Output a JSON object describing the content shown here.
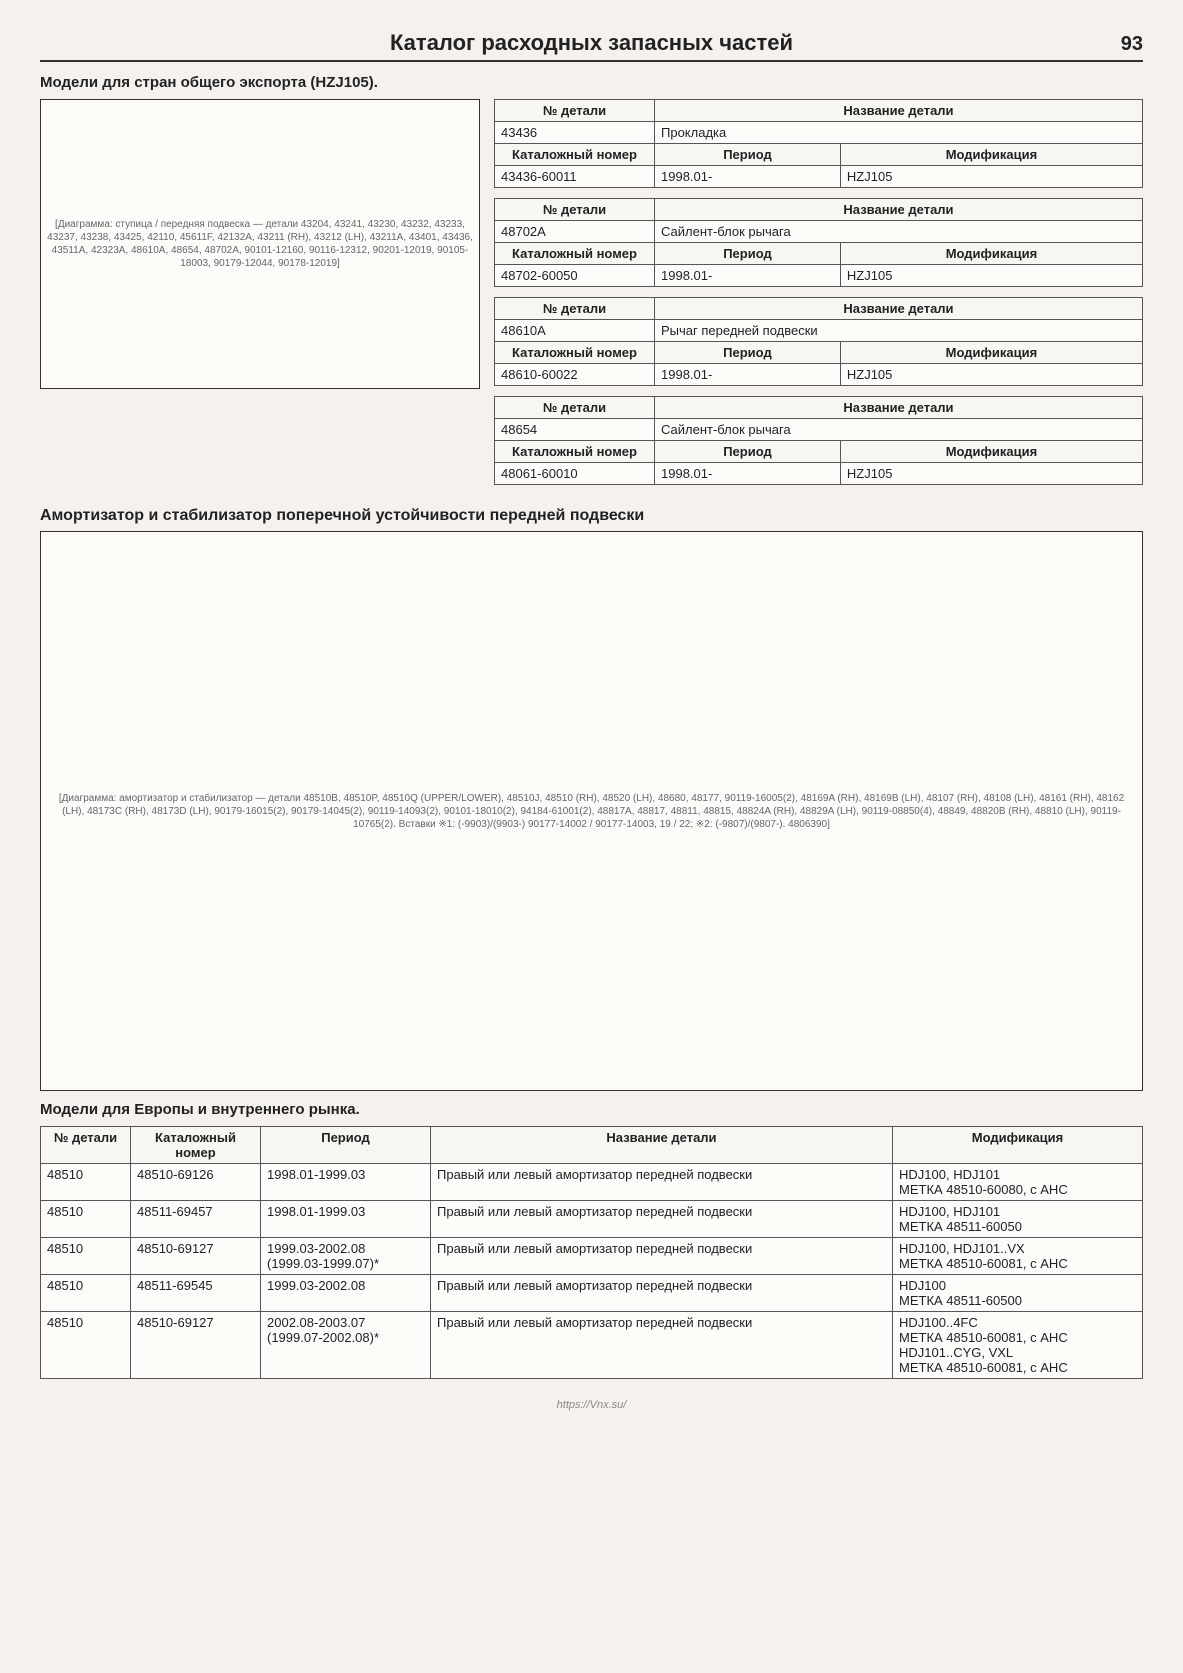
{
  "header": {
    "title": "Каталог расходных запасных частей",
    "page_number": "93"
  },
  "subsection1_title": "Модели для стран общего экспорта (HZJ105).",
  "diagram1_placeholder": "[Диаграмма: ступица / передняя подвеска — детали 43204, 43241, 43230, 43232, 43233, 43237, 43238, 43425, 42110, 45611F, 42132A, 43211 (RH), 43212 (LH), 43211A, 43401, 43436, 43511A, 42323A, 48610A, 48654, 48702A, 90101-12160, 90116-12312, 90201-12019, 90105-18003, 90179-12044, 90178-12019]",
  "part_blocks": [
    {
      "part_label": "№ детали",
      "name_label": "Название детали",
      "part_no": "43436",
      "part_name": "Прокладка",
      "cat_label": "Каталожный номер",
      "period_label": "Период",
      "mod_label": "Модификация",
      "rows": [
        {
          "cat": "43436-60011",
          "period": "1998.01-",
          "mod": "HZJ105"
        }
      ]
    },
    {
      "part_label": "№ детали",
      "name_label": "Название детали",
      "part_no": "48702A",
      "part_name": "Сайлент-блок рычага",
      "cat_label": "Каталожный номер",
      "period_label": "Период",
      "mod_label": "Модификация",
      "rows": [
        {
          "cat": "48702-60050",
          "period": "1998.01-",
          "mod": "HZJ105"
        }
      ]
    },
    {
      "part_label": "№ детали",
      "name_label": "Название детали",
      "part_no": "48610A",
      "part_name": "Рычаг передней подвески",
      "cat_label": "Каталожный номер",
      "period_label": "Период",
      "mod_label": "Модификация",
      "rows": [
        {
          "cat": "48610-60022",
          "period": "1998.01-",
          "mod": "HZJ105"
        }
      ]
    },
    {
      "part_label": "№ детали",
      "name_label": "Название детали",
      "part_no": "48654",
      "part_name": "Сайлент-блок рычага",
      "cat_label": "Каталожный номер",
      "period_label": "Период",
      "mod_label": "Модификация",
      "rows": [
        {
          "cat": "48061-60010",
          "period": "1998.01-",
          "mod": "HZJ105"
        }
      ]
    }
  ],
  "section2_heading": "Амортизатор и стабилизатор поперечной устойчивости передней подвески",
  "diagram2_placeholder": "[Диаграмма: амортизатор и стабилизатор — детали 48510B, 48510P, 48510Q (UPPER/LOWER), 48510J, 48510 (RH), 48520 (LH), 48680, 48177, 90119-16005(2), 48169A (RH), 48169B (LH), 48107 (RH), 48108 (LH), 48161 (RH), 48162 (LH), 48173C (RH), 48173D (LH), 90179-16015(2), 90179-14045(2), 90119-14093(2), 90101-18010(2), 94184-61001(2), 48817A, 48817, 48811, 48815, 48824A (RH), 48829A (LH), 90119-08850(4), 48849, 48820B (RH), 48810 (LH), 90119-10765(2). Вставки ※1: (-9903)/(9903-) 90177-14002 / 90177-14003, 19 / 22; ※2: (-9807)/(9807-). 4806390]",
  "subsection2_title": "Модели для Европы и внутреннего рынка.",
  "main_table": {
    "headers": {
      "part_no": "№ детали",
      "cat_no": "Каталожный номер",
      "period": "Период",
      "name": "Название детали",
      "mod": "Модификация"
    },
    "rows": [
      {
        "part_no": "48510",
        "cat_no": "48510-69126",
        "period": "1998.01-1999.03",
        "name": "Правый или левый амортизатор передней подвески",
        "mod": "HDJ100, HDJ101\nМЕТКА 48510-60080, с AHC"
      },
      {
        "part_no": "48510",
        "cat_no": "48511-69457",
        "period": "1998.01-1999.03",
        "name": "Правый или левый амортизатор передней подвески",
        "mod": "HDJ100, HDJ101\nМЕТКА 48511-60050"
      },
      {
        "part_no": "48510",
        "cat_no": "48510-69127",
        "period": "1999.03-2002.08\n(1999.03-1999.07)*",
        "name": "Правый или левый амортизатор передней подвески",
        "mod": "HDJ100, HDJ101..VX\nМЕТКА 48510-60081, с AHC"
      },
      {
        "part_no": "48510",
        "cat_no": "48511-69545",
        "period": "1999.03-2002.08",
        "name": "Правый или левый амортизатор передней подвески",
        "mod": "HDJ100\nМЕТКА 48511-60500"
      },
      {
        "part_no": "48510",
        "cat_no": "48510-69127",
        "period": "2002.08-2003.07\n(1999.07-2002.08)*",
        "name": "Правый или левый амортизатор передней подвески",
        "mod": "HDJ100..4FC\nМЕТКА 48510-60081, с AHC\nHDJ101..CYG, VXL\nМЕТКА 48510-60081, с AHC"
      }
    ]
  },
  "footer_url": "https://Vnx.su/"
}
